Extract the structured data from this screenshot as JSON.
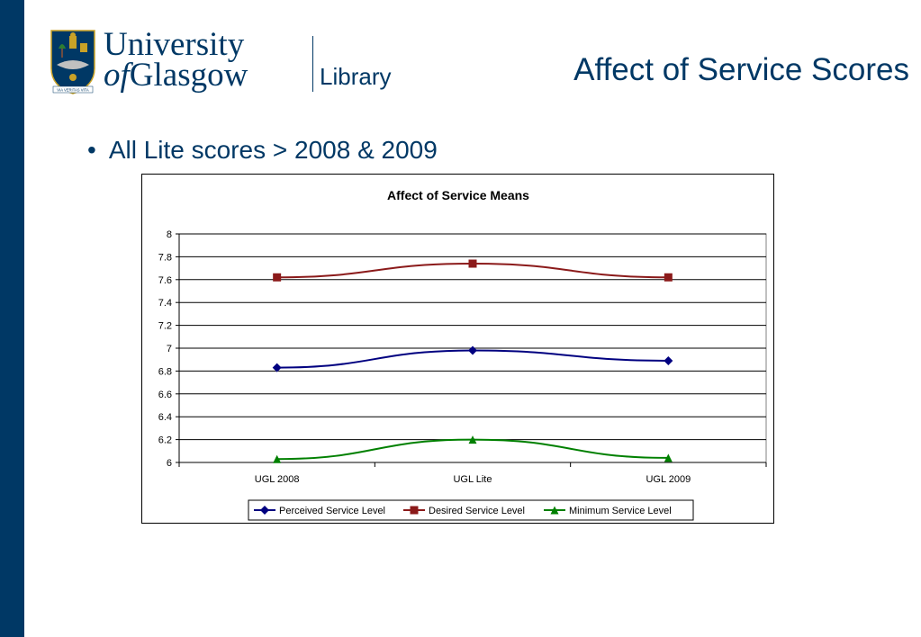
{
  "header": {
    "logo": {
      "line1": "University",
      "line2_of": "of",
      "line2_rest": "Glasgow",
      "library": "Library",
      "motto": "VIA VERITAS VITA"
    },
    "title": "Affect of Service Scores"
  },
  "content": {
    "bullets": [
      "All Lite scores > 2008 & 2009"
    ]
  },
  "colors": {
    "side_bar": "#003865",
    "text": "#003865"
  },
  "chart_data": {
    "type": "line",
    "title": "Affect of Service Means",
    "categories": [
      "UGL 2008",
      "UGL Lite",
      "UGL 2009"
    ],
    "series": [
      {
        "name": "Perceived Service Level",
        "values": [
          6.83,
          6.98,
          6.89
        ],
        "color": "#000080",
        "marker": "diamond"
      },
      {
        "name": "Desired Service Level",
        "values": [
          7.62,
          7.74,
          7.62
        ],
        "color": "#8B1A1A",
        "marker": "square"
      },
      {
        "name": "Minimum Service Level",
        "values": [
          6.03,
          6.2,
          6.04
        ],
        "color": "#008000",
        "marker": "triangle"
      }
    ],
    "ylim": [
      6,
      8
    ],
    "yticks": [
      "6",
      "6.2",
      "6.4",
      "6.6",
      "6.8",
      "7",
      "7.2",
      "7.4",
      "7.6",
      "7.8",
      "8"
    ],
    "grid": true,
    "legend_position": "bottom"
  }
}
